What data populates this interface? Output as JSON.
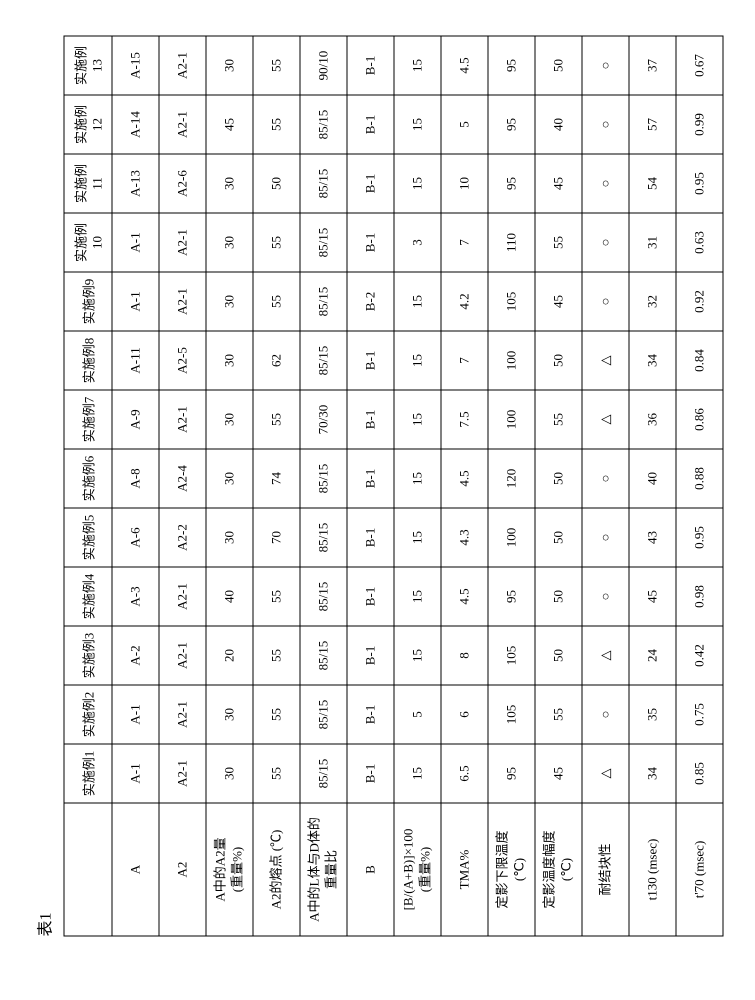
{
  "title": "表1",
  "columns": [
    "实施例1",
    "实施例2",
    "实施例3",
    "实施例4",
    "实施例5",
    "实施例6",
    "实施例7",
    "实施例8",
    "实施例9",
    "实施例10",
    "实施例11",
    "实施例12",
    "实施例13"
  ],
  "rows": [
    {
      "label": "A",
      "values": [
        "A-1",
        "A-1",
        "A-2",
        "A-3",
        "A-6",
        "A-8",
        "A-9",
        "A-11",
        "A-1",
        "A-1",
        "A-13",
        "A-14",
        "A-15"
      ]
    },
    {
      "label": "A2",
      "values": [
        "A2-1",
        "A2-1",
        "A2-1",
        "A2-1",
        "A2-2",
        "A2-4",
        "A2-1",
        "A2-5",
        "A2-1",
        "A2-1",
        "A2-6",
        "A2-1",
        "A2-1"
      ]
    },
    {
      "label": "A中的A2量\n(重量%)",
      "values": [
        "30",
        "30",
        "20",
        "40",
        "30",
        "30",
        "30",
        "30",
        "30",
        "30",
        "30",
        "45",
        "30"
      ]
    },
    {
      "label": "A2的熔点 (℃)",
      "values": [
        "55",
        "55",
        "55",
        "55",
        "70",
        "74",
        "55",
        "62",
        "55",
        "55",
        "50",
        "55",
        "55"
      ]
    },
    {
      "label": "A中的L体与D体的\n重量比",
      "values": [
        "85/15",
        "85/15",
        "85/15",
        "85/15",
        "85/15",
        "85/15",
        "70/30",
        "85/15",
        "85/15",
        "85/15",
        "85/15",
        "85/15",
        "90/10"
      ]
    },
    {
      "label": "B",
      "values": [
        "B-1",
        "B-1",
        "B-1",
        "B-1",
        "B-1",
        "B-1",
        "B-1",
        "B-1",
        "B-2",
        "B-1",
        "B-1",
        "B-1",
        "B-1"
      ]
    },
    {
      "label": "[B/(A+B)]×100\n(重量%)",
      "values": [
        "15",
        "5",
        "15",
        "15",
        "15",
        "15",
        "15",
        "15",
        "15",
        "3",
        "15",
        "15",
        "15"
      ]
    },
    {
      "label": "TMA%",
      "values": [
        "6.5",
        "6",
        "8",
        "4.5",
        "4.3",
        "4.5",
        "7.5",
        "7",
        "4.2",
        "7",
        "10",
        "5",
        "4.5"
      ]
    },
    {
      "label": "定影下限温度\n(℃)",
      "values": [
        "95",
        "105",
        "105",
        "95",
        "100",
        "120",
        "100",
        "100",
        "105",
        "110",
        "95",
        "95",
        "95"
      ]
    },
    {
      "label": "定影温度幅度\n(℃)",
      "values": [
        "45",
        "55",
        "50",
        "50",
        "50",
        "50",
        "55",
        "50",
        "45",
        "55",
        "45",
        "40",
        "50"
      ]
    },
    {
      "label": "耐结块性",
      "values": [
        "△",
        "○",
        "△",
        "○",
        "○",
        "○",
        "△",
        "△",
        "○",
        "○",
        "○",
        "○",
        "○"
      ]
    },
    {
      "label": "t130 (msec)",
      "values": [
        "34",
        "35",
        "24",
        "45",
        "43",
        "40",
        "36",
        "34",
        "32",
        "31",
        "54",
        "57",
        "37"
      ]
    },
    {
      "label": "t'70 (msec)",
      "values": [
        "0.85",
        "0.75",
        "0.42",
        "0.98",
        "0.95",
        "0.88",
        "0.86",
        "0.84",
        "0.92",
        "0.63",
        "0.95",
        "0.99",
        "0.67"
      ]
    }
  ],
  "style": {
    "border_color": "#000000",
    "background_color": "#ffffff",
    "font_family": "serif",
    "cell_fontsize_pt": 10,
    "rotation_deg": -90
  }
}
